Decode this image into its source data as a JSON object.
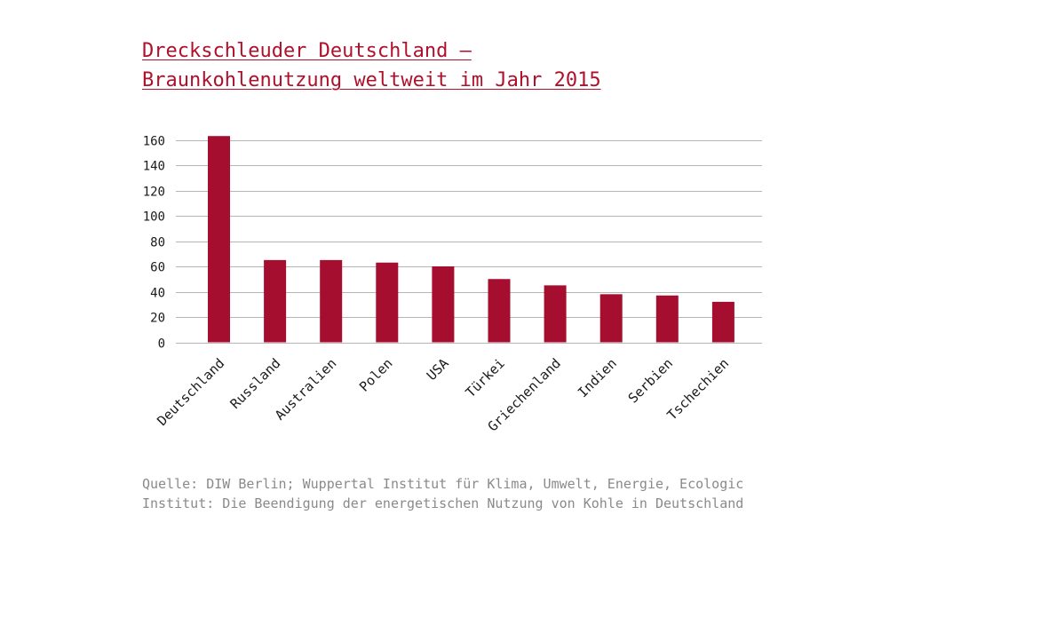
{
  "title_lines": [
    "Dreckschleuder Deutschland –",
    "Braunkohlenutzung weltweit im Jahr 2015"
  ],
  "source_lines": [
    "Quelle: DIW Berlin; Wuppertal Institut für Klima, Umwelt, Energie, Ecologic",
    "Institut: Die Beendigung der energetischen Nutzung von Kohle in Deutschland"
  ],
  "colors": {
    "bar": "#a50e2e",
    "title": "#b0102c",
    "grid": "#b5b5b5",
    "source": "#8a8a8a"
  },
  "chart_data": {
    "type": "bar",
    "title": "Dreckschleuder Deutschland – Braunkohlenutzung weltweit im Jahr 2015",
    "xlabel": "",
    "ylabel": "",
    "categories": [
      "Deutschland",
      "Russland",
      "Australien",
      "Polen",
      "USA",
      "Türkei",
      "Griechenland",
      "Indien",
      "Serbien",
      "Tschechien"
    ],
    "values": [
      163,
      65,
      65,
      63,
      60,
      50,
      45,
      38,
      37,
      32
    ],
    "ylim": [
      0,
      160
    ],
    "yticks": [
      0,
      20,
      40,
      60,
      80,
      100,
      120,
      140,
      160
    ],
    "grid": true,
    "legend": "none"
  }
}
